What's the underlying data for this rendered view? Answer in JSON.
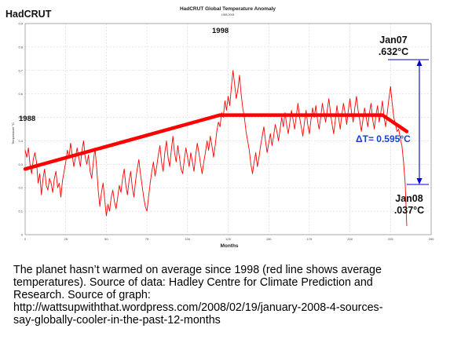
{
  "chart_data": {
    "type": "line",
    "title": "HadCRUT Global Temperature Anomaly",
    "subtitle": "1988-2008",
    "xlabel": "Months",
    "ylabel": "Temperature °C",
    "xlim": [
      0,
      250
    ],
    "ylim": [
      0.0,
      0.9
    ],
    "x_ticks": [
      0,
      25,
      50,
      75,
      100,
      125,
      150,
      175,
      200,
      225,
      250
    ],
    "y_ticks": [
      0.0,
      0.1,
      0.2,
      0.3,
      0.4,
      0.5,
      0.6,
      0.7,
      0.8,
      0.9
    ],
    "y_tick_labels": [
      "0",
      "0.1",
      "0.2",
      "0.3",
      "0.4",
      "0.5",
      "0.6",
      "0.7",
      "0.8",
      "0.9"
    ],
    "grid": true,
    "colors": {
      "data": "#ff0000",
      "trend": "#ff0000",
      "bracket": "#0000cc",
      "delta_text": "#1a3fd6"
    },
    "series": [
      {
        "values": [
          [
            0,
            0.36
          ],
          [
            1,
            0.33
          ],
          [
            2,
            0.37
          ],
          [
            3,
            0.3
          ],
          [
            4,
            0.26
          ],
          [
            5,
            0.32
          ],
          [
            6,
            0.35
          ],
          [
            7,
            0.31
          ],
          [
            8,
            0.22
          ],
          [
            9,
            0.26
          ],
          [
            10,
            0.17
          ],
          [
            11,
            0.24
          ],
          [
            12,
            0.28
          ],
          [
            13,
            0.21
          ],
          [
            14,
            0.19
          ],
          [
            15,
            0.24
          ],
          [
            16,
            0.22
          ],
          [
            17,
            0.18
          ],
          [
            18,
            0.24
          ],
          [
            19,
            0.27
          ],
          [
            20,
            0.2
          ],
          [
            21,
            0.22
          ],
          [
            22,
            0.16
          ],
          [
            23,
            0.23
          ],
          [
            24,
            0.27
          ],
          [
            25,
            0.31
          ],
          [
            26,
            0.36
          ],
          [
            27,
            0.33
          ],
          [
            28,
            0.39
          ],
          [
            29,
            0.34
          ],
          [
            30,
            0.29
          ],
          [
            31,
            0.33
          ],
          [
            32,
            0.37
          ],
          [
            33,
            0.33
          ],
          [
            34,
            0.29
          ],
          [
            35,
            0.36
          ],
          [
            36,
            0.4
          ],
          [
            37,
            0.33
          ],
          [
            38,
            0.3
          ],
          [
            39,
            0.34
          ],
          [
            40,
            0.27
          ],
          [
            41,
            0.24
          ],
          [
            42,
            0.31
          ],
          [
            43,
            0.37
          ],
          [
            44,
            0.29
          ],
          [
            45,
            0.19
          ],
          [
            46,
            0.12
          ],
          [
            47,
            0.18
          ],
          [
            48,
            0.22
          ],
          [
            49,
            0.15
          ],
          [
            50,
            0.08
          ],
          [
            51,
            0.13
          ],
          [
            52,
            0.1
          ],
          [
            53,
            0.16
          ],
          [
            54,
            0.19
          ],
          [
            55,
            0.14
          ],
          [
            56,
            0.11
          ],
          [
            57,
            0.16
          ],
          [
            58,
            0.21
          ],
          [
            59,
            0.18
          ],
          [
            60,
            0.24
          ],
          [
            61,
            0.28
          ],
          [
            62,
            0.21
          ],
          [
            63,
            0.17
          ],
          [
            64,
            0.23
          ],
          [
            65,
            0.27
          ],
          [
            66,
            0.2
          ],
          [
            67,
            0.16
          ],
          [
            68,
            0.23
          ],
          [
            69,
            0.28
          ],
          [
            70,
            0.32
          ],
          [
            71,
            0.26
          ],
          [
            72,
            0.21
          ],
          [
            73,
            0.16
          ],
          [
            74,
            0.12
          ],
          [
            75,
            0.1
          ],
          [
            76,
            0.16
          ],
          [
            77,
            0.22
          ],
          [
            78,
            0.27
          ],
          [
            79,
            0.31
          ],
          [
            80,
            0.25
          ],
          [
            81,
            0.29
          ],
          [
            82,
            0.34
          ],
          [
            83,
            0.38
          ],
          [
            84,
            0.31
          ],
          [
            85,
            0.27
          ],
          [
            86,
            0.35
          ],
          [
            87,
            0.4
          ],
          [
            88,
            0.33
          ],
          [
            89,
            0.29
          ],
          [
            90,
            0.36
          ],
          [
            91,
            0.42
          ],
          [
            92,
            0.35
          ],
          [
            93,
            0.31
          ],
          [
            94,
            0.38
          ],
          [
            95,
            0.33
          ],
          [
            96,
            0.28
          ],
          [
            97,
            0.26
          ],
          [
            98,
            0.32
          ],
          [
            99,
            0.37
          ],
          [
            100,
            0.33
          ],
          [
            101,
            0.29
          ],
          [
            102,
            0.35
          ],
          [
            103,
            0.31
          ],
          [
            104,
            0.27
          ],
          [
            105,
            0.34
          ],
          [
            106,
            0.39
          ],
          [
            107,
            0.35
          ],
          [
            108,
            0.3
          ],
          [
            109,
            0.26
          ],
          [
            110,
            0.31
          ],
          [
            111,
            0.35
          ],
          [
            112,
            0.4
          ],
          [
            113,
            0.36
          ],
          [
            114,
            0.42
          ],
          [
            115,
            0.38
          ],
          [
            116,
            0.33
          ],
          [
            117,
            0.38
          ],
          [
            118,
            0.44
          ],
          [
            119,
            0.48
          ],
          [
            120,
            0.46
          ],
          [
            121,
            0.52
          ],
          [
            122,
            0.5
          ],
          [
            123,
            0.57
          ],
          [
            124,
            0.53
          ],
          [
            125,
            0.59
          ],
          [
            126,
            0.55
          ],
          [
            127,
            0.63
          ],
          [
            128,
            0.7
          ],
          [
            129,
            0.64
          ],
          [
            130,
            0.58
          ],
          [
            131,
            0.62
          ],
          [
            132,
            0.68
          ],
          [
            133,
            0.6
          ],
          [
            134,
            0.54
          ],
          [
            135,
            0.5
          ],
          [
            136,
            0.44
          ],
          [
            137,
            0.4
          ],
          [
            138,
            0.36
          ],
          [
            139,
            0.3
          ],
          [
            140,
            0.26
          ],
          [
            141,
            0.31
          ],
          [
            142,
            0.35
          ],
          [
            143,
            0.29
          ],
          [
            144,
            0.33
          ],
          [
            145,
            0.38
          ],
          [
            146,
            0.42
          ],
          [
            147,
            0.46
          ],
          [
            148,
            0.4
          ],
          [
            149,
            0.35
          ],
          [
            150,
            0.39
          ],
          [
            151,
            0.43
          ],
          [
            152,
            0.38
          ],
          [
            153,
            0.42
          ],
          [
            154,
            0.47
          ],
          [
            155,
            0.44
          ],
          [
            156,
            0.4
          ],
          [
            157,
            0.45
          ],
          [
            158,
            0.5
          ],
          [
            159,
            0.46
          ],
          [
            160,
            0.52
          ],
          [
            161,
            0.47
          ],
          [
            162,
            0.43
          ],
          [
            163,
            0.48
          ],
          [
            164,
            0.53
          ],
          [
            165,
            0.49
          ],
          [
            166,
            0.45
          ],
          [
            167,
            0.51
          ],
          [
            168,
            0.56
          ],
          [
            169,
            0.5
          ],
          [
            170,
            0.46
          ],
          [
            171,
            0.42
          ],
          [
            172,
            0.48
          ],
          [
            173,
            0.53
          ],
          [
            174,
            0.47
          ],
          [
            175,
            0.43
          ],
          [
            176,
            0.49
          ],
          [
            177,
            0.54
          ],
          [
            178,
            0.5
          ],
          [
            179,
            0.55
          ],
          [
            180,
            0.49
          ],
          [
            181,
            0.45
          ],
          [
            182,
            0.5
          ],
          [
            183,
            0.56
          ],
          [
            184,
            0.52
          ],
          [
            185,
            0.48
          ],
          [
            186,
            0.53
          ],
          [
            187,
            0.58
          ],
          [
            188,
            0.52
          ],
          [
            189,
            0.47
          ],
          [
            190,
            0.43
          ],
          [
            191,
            0.49
          ],
          [
            192,
            0.55
          ],
          [
            193,
            0.5
          ],
          [
            194,
            0.45
          ],
          [
            195,
            0.51
          ],
          [
            196,
            0.56
          ],
          [
            197,
            0.52
          ],
          [
            198,
            0.47
          ],
          [
            199,
            0.53
          ],
          [
            200,
            0.58
          ],
          [
            201,
            0.52
          ],
          [
            202,
            0.48
          ],
          [
            203,
            0.54
          ],
          [
            204,
            0.59
          ],
          [
            205,
            0.53
          ],
          [
            206,
            0.49
          ],
          [
            207,
            0.44
          ],
          [
            208,
            0.49
          ],
          [
            209,
            0.54
          ],
          [
            210,
            0.5
          ],
          [
            211,
            0.46
          ],
          [
            212,
            0.52
          ],
          [
            213,
            0.56
          ],
          [
            214,
            0.49
          ],
          [
            215,
            0.45
          ],
          [
            216,
            0.51
          ],
          [
            217,
            0.55
          ],
          [
            218,
            0.48
          ],
          [
            219,
            0.52
          ],
          [
            220,
            0.57
          ],
          [
            221,
            0.5
          ],
          [
            222,
            0.46
          ],
          [
            223,
            0.52
          ],
          [
            224,
            0.58
          ],
          [
            225,
            0.632
          ],
          [
            226,
            0.56
          ],
          [
            227,
            0.5
          ],
          [
            228,
            0.47
          ],
          [
            229,
            0.44
          ],
          [
            230,
            0.45
          ],
          [
            231,
            0.41
          ],
          [
            232,
            0.38
          ],
          [
            233,
            0.31
          ],
          [
            234,
            0.22
          ],
          [
            235,
            0.037
          ]
        ]
      }
    ],
    "average_line": [
      {
        "x": 0,
        "y": 0.28
      },
      {
        "x": 120,
        "y": 0.51
      },
      {
        "x": 220,
        "y": 0.51
      },
      {
        "x": 235,
        "y": 0.44
      }
    ],
    "annotations": {
      "label_1988": "1988",
      "label_1998": "1998",
      "jan07_label": "Jan07",
      "jan07_value": ".632°C",
      "jan08_label": "Jan08",
      "jan08_value": ".037°C",
      "delta_t": "ΔT= 0.595°C"
    }
  },
  "header": {
    "brand": "HadCRUT",
    "title": "HadCRUT Global Temperature Anomaly",
    "subtitle": "1988-2008"
  },
  "caption": {
    "lines": [
      "The planet hasn’t warmed on average since 1998 (red line shows average",
      "temperatures).  Source of data: Hadley Centre for Climate Prediction and",
      "Research. Source of graph:",
      "http://wattsupwiththat.wordpress.com/2008/02/19/january-2008-4-sources-",
      "say-globally-cooler-in-the-past-12-months"
    ]
  }
}
